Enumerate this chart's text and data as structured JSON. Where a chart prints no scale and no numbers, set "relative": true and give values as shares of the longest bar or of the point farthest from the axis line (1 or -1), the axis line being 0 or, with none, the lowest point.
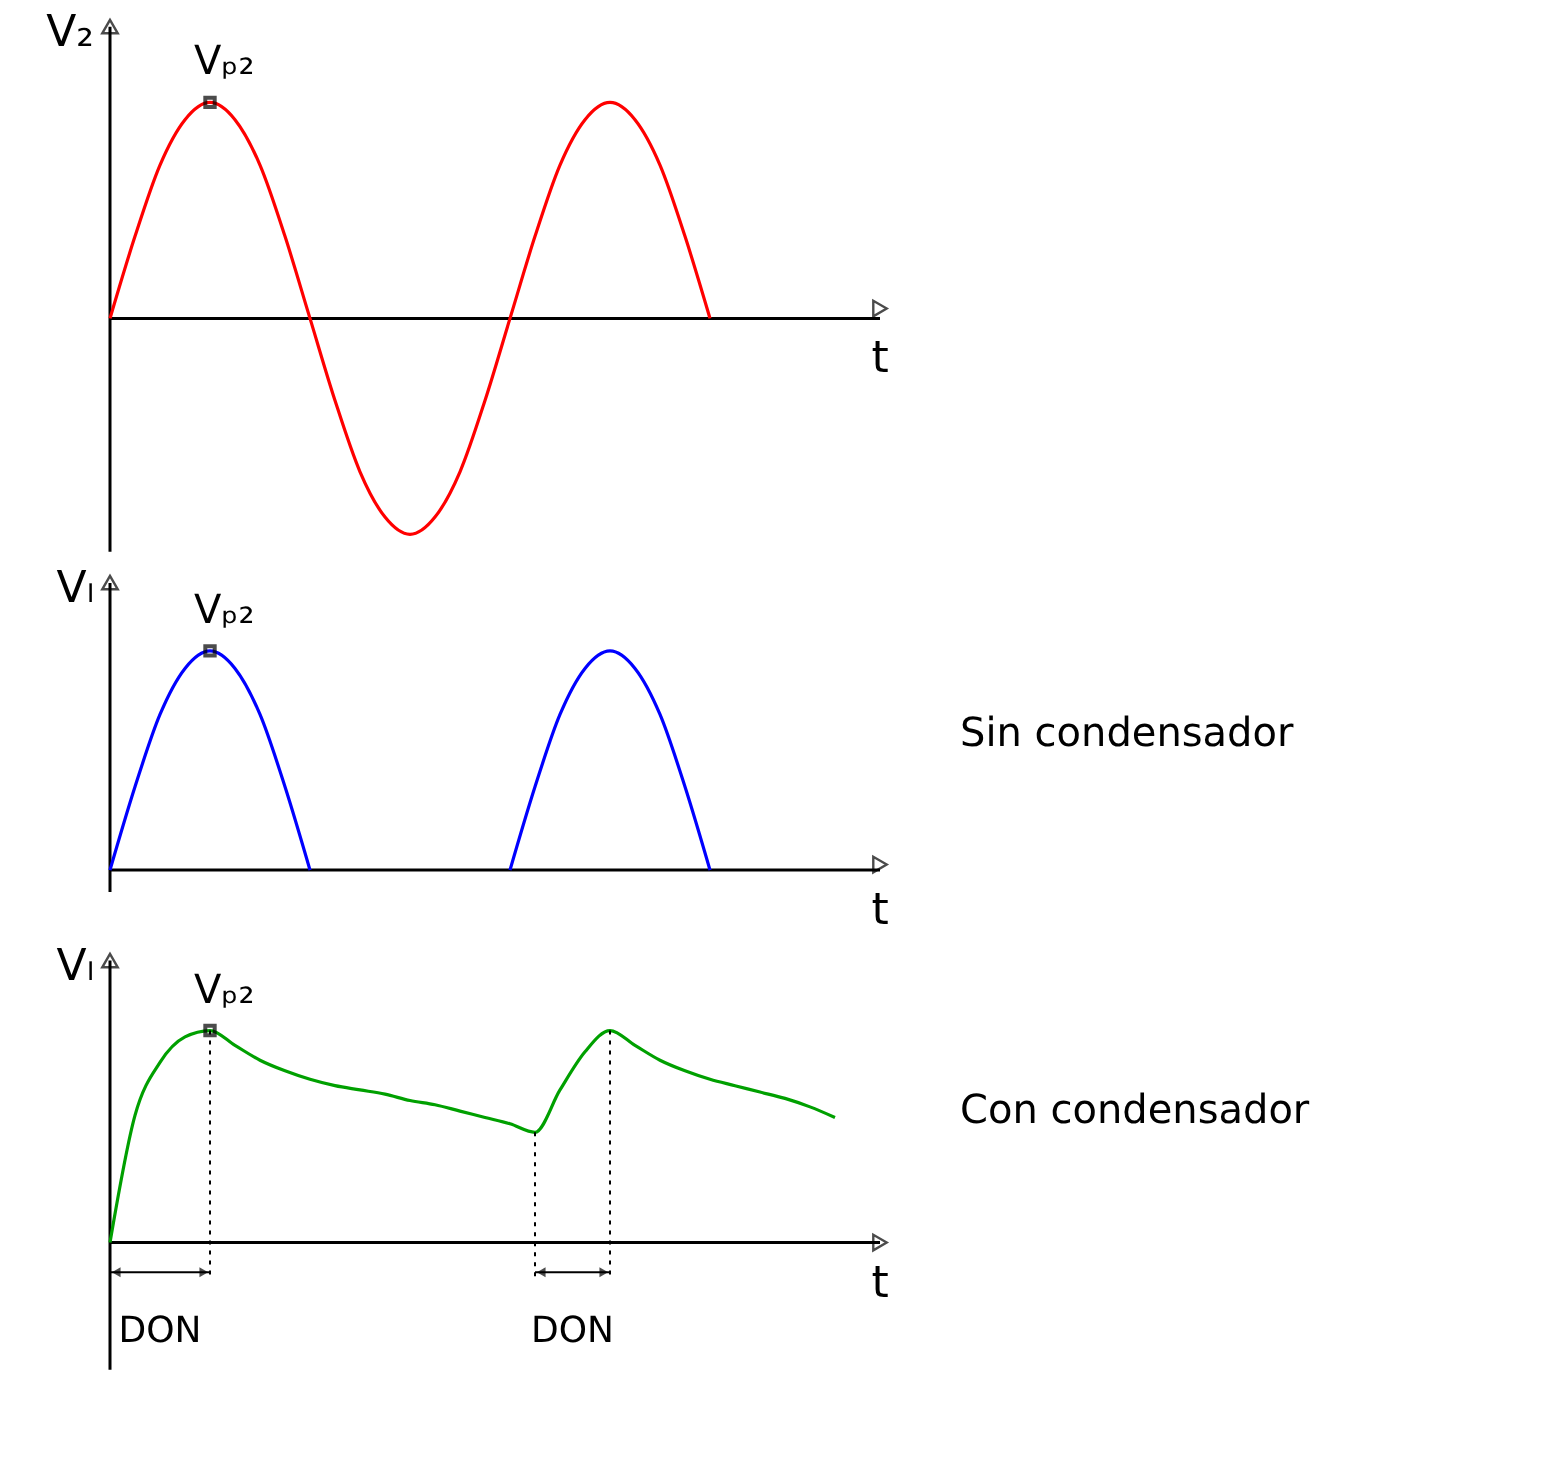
{
  "chart_data": [
    {
      "type": "line",
      "relative": true,
      "ylabel": "V₂",
      "xlabel": "t",
      "categories": [
        null,
        null,
        null,
        null,
        null,
        null,
        null,
        null,
        null,
        null,
        null,
        null,
        null,
        null,
        null,
        null,
        null,
        null,
        null,
        null,
        null,
        null,
        null,
        null,
        null,
        null,
        null,
        null,
        null,
        null
      ],
      "series": [
        {
          "color": "#ff0000",
          "values": [
            0,
            0.38,
            0.71,
            0.92,
            1,
            0.92,
            0.71,
            0.38,
            0,
            -0.38,
            -0.71,
            -0.92,
            -1,
            -0.92,
            -0.71,
            -0.38,
            0,
            0.38,
            0.71,
            0.92,
            1,
            0.92,
            0.71,
            0.38,
            0,
            null,
            null,
            null,
            null,
            null
          ]
        }
      ],
      "annotations": [
        {
          "text": "Vₚ₂",
          "y": 1
        }
      ]
    },
    {
      "type": "line",
      "relative": true,
      "ylabel": "Vₗ",
      "xlabel": "t",
      "categories": [
        null,
        null,
        null,
        null,
        null,
        null,
        null,
        null,
        null,
        null,
        null,
        null,
        null,
        null,
        null,
        null,
        null,
        null,
        null,
        null,
        null,
        null,
        null,
        null,
        null,
        null,
        null,
        null,
        null,
        null
      ],
      "series": [
        {
          "color": "#0000ff",
          "values": [
            0,
            0.38,
            0.71,
            0.92,
            1,
            0.92,
            0.71,
            0.38,
            0,
            null,
            null,
            null,
            null,
            null,
            null,
            null,
            0,
            0.38,
            0.71,
            0.92,
            1,
            0.92,
            0.71,
            0.38,
            0,
            null,
            null,
            null,
            null,
            null
          ]
        }
      ],
      "annotations": [
        {
          "text": "Vₚ₂",
          "y": 1
        },
        "Sin condensador"
      ]
    },
    {
      "type": "line",
      "relative": true,
      "ylabel": "Vₗ",
      "xlabel": "t",
      "categories": [
        null,
        null,
        null,
        null,
        null,
        null,
        null,
        null,
        null,
        null,
        null,
        null,
        null,
        null,
        null,
        null,
        null,
        null,
        null,
        null,
        null,
        null,
        null,
        null,
        null,
        null,
        null,
        null,
        null,
        null
      ],
      "series": [
        {
          "color": "#00a000",
          "values": [
            0,
            0.6,
            0.85,
            0.97,
            1,
            0.93,
            0.86,
            0.81,
            0.77,
            0.74,
            0.72,
            0.7,
            0.67,
            0.65,
            0.62,
            0.59,
            0.56,
            0.52,
            0.72,
            0.9,
            1,
            0.93,
            0.86,
            0.81,
            0.77,
            0.74,
            0.71,
            0.68,
            0.64,
            0.59
          ]
        }
      ],
      "annotations": [
        {
          "text": "Vₚ₂",
          "y": 1
        },
        "Con condensador",
        "DON",
        "DON"
      ]
    }
  ]
}
